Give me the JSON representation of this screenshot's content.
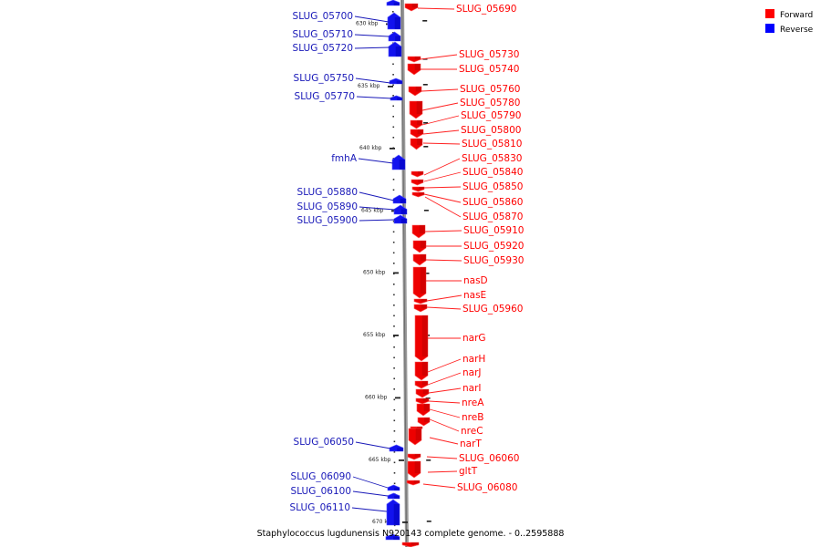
{
  "caption": "Staphylococcus lugdunensis N920143 complete genome. - 0..2595888",
  "legend": [
    {
      "label": "Forward",
      "color": "#ff0000"
    },
    {
      "label": "Reverse",
      "color": "#0000ff"
    }
  ],
  "scale_ticks": [
    {
      "label": "630 kbp"
    },
    {
      "label": "635 kbp"
    },
    {
      "label": "640 kbp"
    },
    {
      "label": "645 kbp"
    },
    {
      "label": "650 kbp"
    },
    {
      "label": "655 kbp"
    },
    {
      "label": "660 kbp"
    },
    {
      "label": "665 kbp"
    },
    {
      "label": "670 kbp"
    }
  ],
  "reverse_genes": [
    {
      "name": "SLUG_05700"
    },
    {
      "name": "SLUG_05710"
    },
    {
      "name": "SLUG_05720"
    },
    {
      "name": "SLUG_05750"
    },
    {
      "name": "SLUG_05770"
    },
    {
      "name": "fmhA"
    },
    {
      "name": "SLUG_05880"
    },
    {
      "name": "SLUG_05890"
    },
    {
      "name": "SLUG_05900"
    },
    {
      "name": "SLUG_06050"
    },
    {
      "name": "SLUG_06090"
    },
    {
      "name": "SLUG_06100"
    },
    {
      "name": "SLUG_06110"
    }
  ],
  "forward_genes": [
    {
      "name": "SLUG_05690"
    },
    {
      "name": "SLUG_05730"
    },
    {
      "name": "SLUG_05740"
    },
    {
      "name": "SLUG_05760"
    },
    {
      "name": "SLUG_05780"
    },
    {
      "name": "SLUG_05790"
    },
    {
      "name": "SLUG_05800"
    },
    {
      "name": "SLUG_05810"
    },
    {
      "name": "SLUG_05830"
    },
    {
      "name": "SLUG_05840"
    },
    {
      "name": "SLUG_05850"
    },
    {
      "name": "SLUG_05860"
    },
    {
      "name": "SLUG_05870"
    },
    {
      "name": "SLUG_05910"
    },
    {
      "name": "SLUG_05920"
    },
    {
      "name": "SLUG_05930"
    },
    {
      "name": "nasD"
    },
    {
      "name": "nasE"
    },
    {
      "name": "SLUG_05960"
    },
    {
      "name": "narG"
    },
    {
      "name": "narH"
    },
    {
      "name": "narJ"
    },
    {
      "name": "narI"
    },
    {
      "name": "nreA"
    },
    {
      "name": "nreB"
    },
    {
      "name": "nreC"
    },
    {
      "name": "narT"
    },
    {
      "name": "SLUG_06060"
    },
    {
      "name": "gltT"
    },
    {
      "name": "SLUG_06080"
    }
  ]
}
